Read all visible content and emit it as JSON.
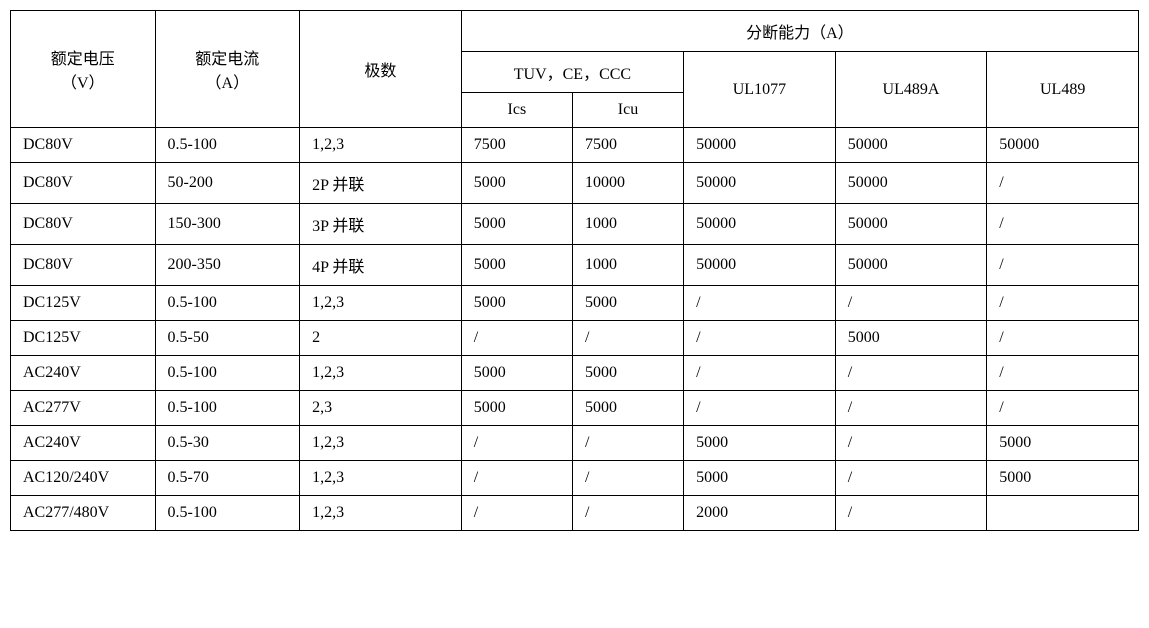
{
  "table": {
    "type": "table",
    "background_color": "#ffffff",
    "border_color": "#000000",
    "text_color": "#000000",
    "font_family": "SimSun",
    "font_size": 15,
    "header": {
      "voltage_line1": "额定电压",
      "voltage_line2": "（V）",
      "current_line1": "额定电流",
      "current_line2": "（A）",
      "poles": "极数",
      "breaking_capacity": "分断能力（A）",
      "tuv_ce_ccc": "TUV，CE，CCC",
      "ics": "Ics",
      "icu": "Icu",
      "ul1077": "UL1077",
      "ul489a": "UL489A",
      "ul489": "UL489"
    },
    "column_widths": {
      "voltage": 143,
      "current": 143,
      "poles": 160,
      "ics": 110,
      "icu": 110,
      "ul1077": 150,
      "ul489a": 150,
      "ul489": 150
    },
    "rows": [
      {
        "voltage": "DC80V",
        "current": "0.5-100",
        "poles": "1,2,3",
        "ics": "7500",
        "icu": "7500",
        "ul1077": "50000",
        "ul489a": "50000",
        "ul489": "50000"
      },
      {
        "voltage": "DC80V",
        "current": "50-200",
        "poles": "2P 并联",
        "ics": "5000",
        "icu": "10000",
        "ul1077": "50000",
        "ul489a": "50000",
        "ul489": "/"
      },
      {
        "voltage": "DC80V",
        "current": "150-300",
        "poles": "3P 并联",
        "ics": "5000",
        "icu": "1000",
        "ul1077": "50000",
        "ul489a": "50000",
        "ul489": "/"
      },
      {
        "voltage": "DC80V",
        "current": "200-350",
        "poles": "4P 并联",
        "ics": "5000",
        "icu": "1000",
        "ul1077": "50000",
        "ul489a": "50000",
        "ul489": "/"
      },
      {
        "voltage": "DC125V",
        "current": "0.5-100",
        "poles": "1,2,3",
        "ics": "5000",
        "icu": "5000",
        "ul1077": "/",
        "ul489a": "/",
        "ul489": "/"
      },
      {
        "voltage": "DC125V",
        "current": "0.5-50",
        "poles": "2",
        "ics": "/",
        "icu": "/",
        "ul1077": "/",
        "ul489a": "5000",
        "ul489": "/"
      },
      {
        "voltage": "AC240V",
        "current": "0.5-100",
        "poles": "1,2,3",
        "ics": "5000",
        "icu": "5000",
        "ul1077": "/",
        "ul489a": "/",
        "ul489": "/"
      },
      {
        "voltage": "AC277V",
        "current": "0.5-100",
        "poles": "2,3",
        "ics": "5000",
        "icu": "5000",
        "ul1077": "/",
        "ul489a": "/",
        "ul489": "/"
      },
      {
        "voltage": "AC240V",
        "current": "0.5-30",
        "poles": "1,2,3",
        "ics": "/",
        "icu": "/",
        "ul1077": "5000",
        "ul489a": "/",
        "ul489": "5000"
      },
      {
        "voltage": "AC120/240V",
        "current": "0.5-70",
        "poles": "1,2,3",
        "ics": "/",
        "icu": "/",
        "ul1077": "5000",
        "ul489a": "/",
        "ul489": "5000"
      },
      {
        "voltage": "AC277/480V",
        "current": "0.5-100",
        "poles": "1,2,3",
        "ics": "/",
        "icu": "/",
        "ul1077": "2000",
        "ul489a": "/",
        "ul489": ""
      }
    ]
  }
}
